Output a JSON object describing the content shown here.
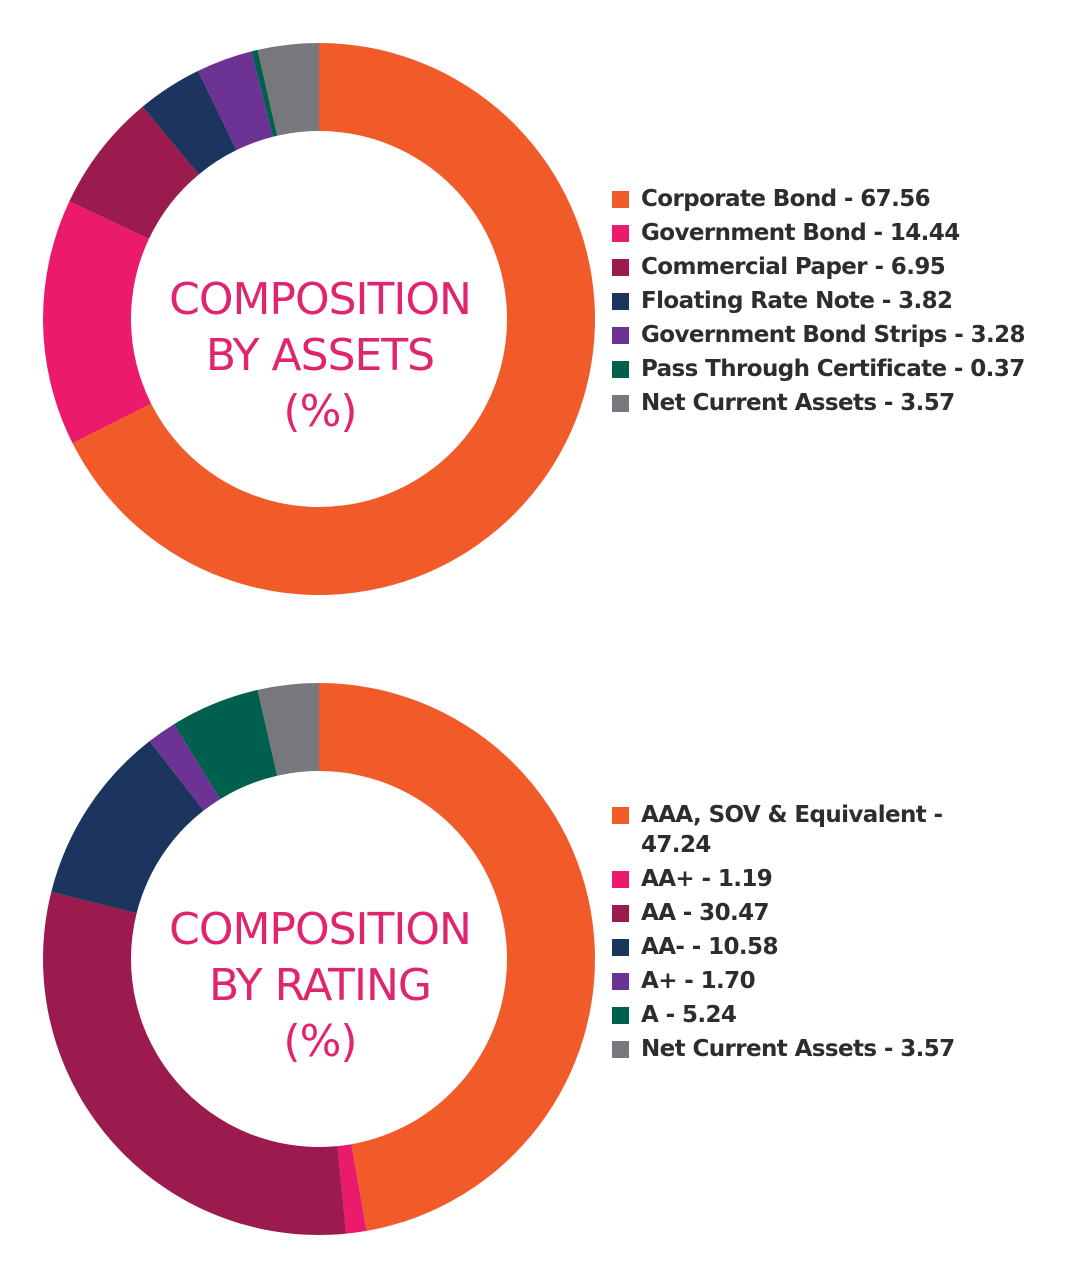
{
  "chart_data": [
    {
      "type": "pie",
      "variant": "donut",
      "center_text": [
        "COMPOSITION",
        "BY ASSETS",
        "(%)"
      ],
      "series": [
        {
          "label": "Corporate Bond - 67.56",
          "value": 67.56,
          "color": "#f15a29"
        },
        {
          "label": "Government Bond - 14.44",
          "value": 14.44,
          "color": "#ec1a6b"
        },
        {
          "label": "Commercial Paper - 6.95",
          "value": 6.95,
          "color": "#9b1b4e"
        },
        {
          "label": "Floating Rate Note - 3.82",
          "value": 3.82,
          "color": "#1c355e"
        },
        {
          "label": "Government Bond Strips - 3.28",
          "value": 3.28,
          "color": "#6d3394"
        },
        {
          "label": "Pass Through Certificate - 0.37",
          "value": 0.37,
          "color": "#00604d"
        },
        {
          "label": "Net Current Assets - 3.57",
          "value": 3.57,
          "color": "#77787b"
        }
      ],
      "legend_position": "right"
    },
    {
      "type": "pie",
      "variant": "donut",
      "center_text": [
        "COMPOSITION",
        "BY RATING",
        "(%)"
      ],
      "series": [
        {
          "label": "AAA, SOV & Equivalent - 47.24",
          "value": 47.24,
          "color": "#f15a29"
        },
        {
          "label": "AA+ - 1.19",
          "value": 1.19,
          "color": "#ec1a6b"
        },
        {
          "label": "AA - 30.47",
          "value": 30.47,
          "color": "#9b1b4e"
        },
        {
          "label": "AA- - 10.58",
          "value": 10.58,
          "color": "#1c355e"
        },
        {
          "label": "A+ - 1.70",
          "value": 1.7,
          "color": "#6d3394"
        },
        {
          "label": "A - 5.24",
          "value": 5.24,
          "color": "#00604d"
        },
        {
          "label": "Net Current Assets - 3.57",
          "value": 3.57,
          "color": "#77787b"
        }
      ],
      "legend_position": "right"
    }
  ]
}
